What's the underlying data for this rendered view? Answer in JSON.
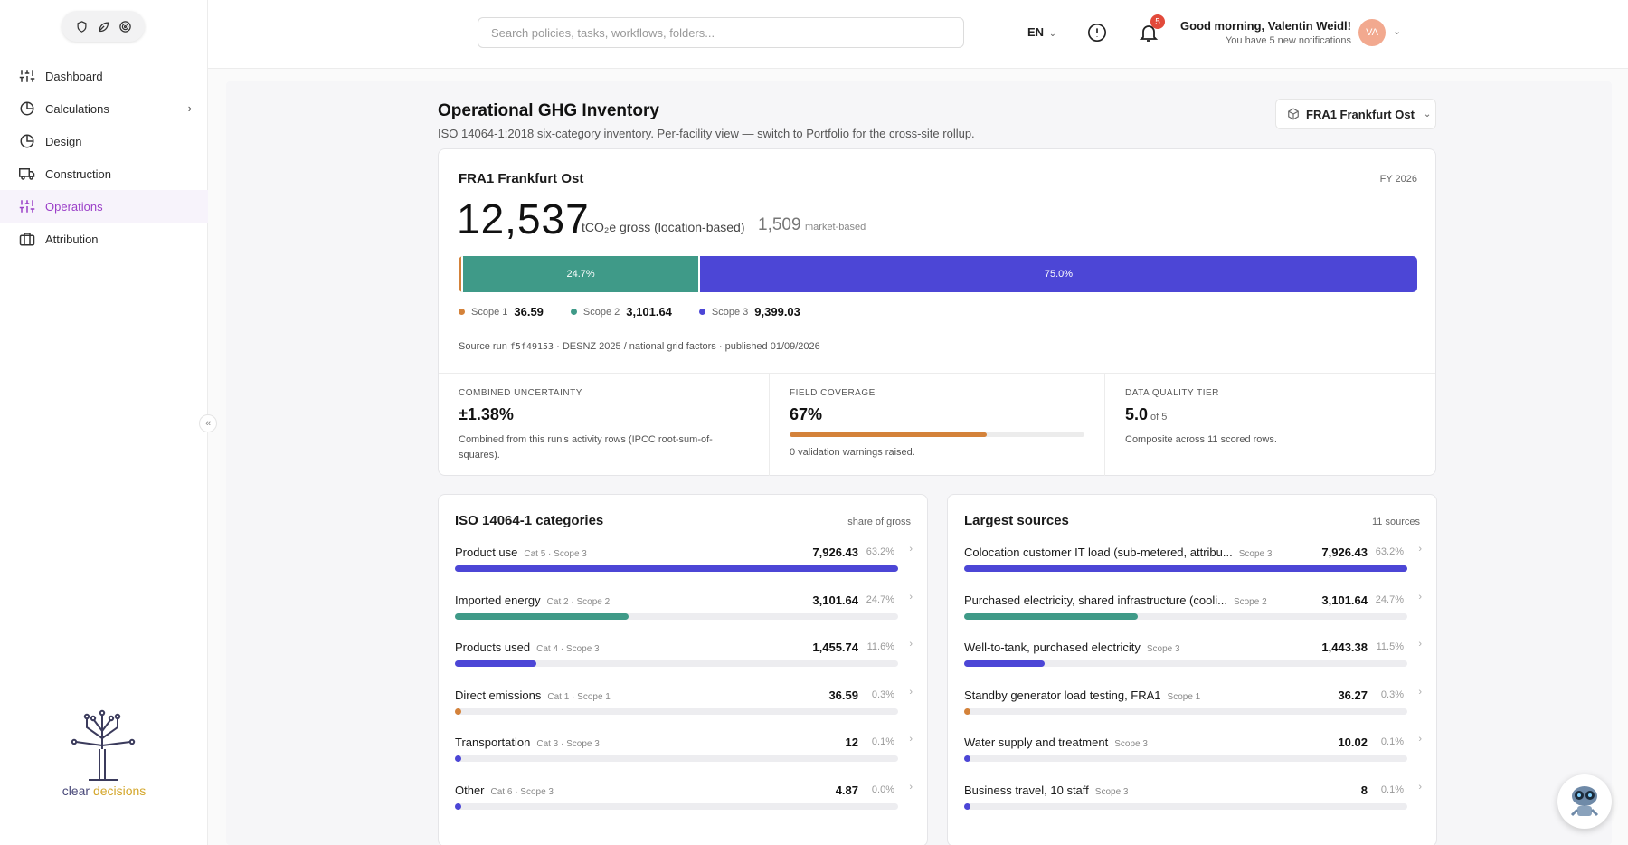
{
  "header": {
    "search_placeholder": "Search policies, tasks, workflows, folders...",
    "language": "EN",
    "notification_count": "5",
    "greeting": "Good morning, Valentin Weidl!",
    "greeting_sub": "You have 5 new notifications",
    "avatar_initials": "VA"
  },
  "sidebar": {
    "items": [
      {
        "label": "Dashboard",
        "icon": "sliders-icon"
      },
      {
        "label": "Calculations",
        "icon": "pie-chart-icon"
      },
      {
        "label": "Design",
        "icon": "pie-chart-icon"
      },
      {
        "label": "Construction",
        "icon": "truck-icon"
      },
      {
        "label": "Operations",
        "icon": "sliders-icon"
      },
      {
        "label": "Attribution",
        "icon": "briefcase-icon"
      }
    ],
    "brand_name_1": "clear",
    "brand_name_2": "decisions"
  },
  "page": {
    "title": "Operational GHG Inventory",
    "subtitle": "ISO 14064-1:2018 six-category inventory. Per-facility view — switch to Portfolio for the cross-site rollup.",
    "facility_select": "FRA1 Frankfurt Ost"
  },
  "summary": {
    "facility": "FRA1 Frankfurt Ost",
    "fiscal_year": "FY 2026",
    "gross": "12,537",
    "gross_unit": "tCO₂e gross (location-based)",
    "market": "1,509",
    "market_label": "market-based",
    "bar": [
      {
        "pct": 0.3,
        "label": "",
        "color": "#d4823a"
      },
      {
        "pct": 24.7,
        "label": "24.7%",
        "color": "#3f9a88"
      },
      {
        "pct": 75.0,
        "label": "75.0%",
        "color": "#4c46d6"
      }
    ],
    "legend": [
      {
        "name": "Scope 1",
        "value": "36.59",
        "color": "#d4823a"
      },
      {
        "name": "Scope 2",
        "value": "3,101.64",
        "color": "#3f9a88"
      },
      {
        "name": "Scope 3",
        "value": "9,399.03",
        "color": "#4c46d6"
      }
    ],
    "source_prefix": "Source run",
    "source_id": "f5f49153",
    "source_suffix": "· DESNZ 2025 / national grid factors · published 01/09/2026",
    "metrics": {
      "uncertainty_label": "COMBINED UNCERTAINTY",
      "uncertainty_value": "±1.38%",
      "uncertainty_desc": "Combined from this run's activity rows (IPCC root-sum-of-squares).",
      "coverage_label": "FIELD COVERAGE",
      "coverage_value": "67%",
      "coverage_pct": 67,
      "coverage_desc": "0 validation warnings raised.",
      "quality_label": "DATA QUALITY TIER",
      "quality_value": "5.0",
      "quality_of": "of 5",
      "quality_desc": "Composite across 11 scored rows."
    }
  },
  "categories": {
    "title": "ISO 14064-1 categories",
    "meta": "share of gross",
    "rows": [
      {
        "name": "Product use",
        "tag": "Cat 5 · Scope 3",
        "value": "7,926.43",
        "pct": "63.2%",
        "share": 63.2,
        "color": "#4c46d6"
      },
      {
        "name": "Imported energy",
        "tag": "Cat 2 · Scope 2",
        "value": "3,101.64",
        "pct": "24.7%",
        "share": 24.7,
        "color": "#3f9a88"
      },
      {
        "name": "Products used",
        "tag": "Cat 4 · Scope 3",
        "value": "1,455.74",
        "pct": "11.6%",
        "share": 11.6,
        "color": "#4c46d6"
      },
      {
        "name": "Direct emissions",
        "tag": "Cat 1 · Scope 1",
        "value": "36.59",
        "pct": "0.3%",
        "share": 0.3,
        "color": "#d4823a"
      },
      {
        "name": "Transportation",
        "tag": "Cat 3 · Scope 3",
        "value": "12",
        "pct": "0.1%",
        "share": 0.1,
        "color": "#4c46d6"
      },
      {
        "name": "Other",
        "tag": "Cat 6 · Scope 3",
        "value": "4.87",
        "pct": "0.0%",
        "share": 0.0,
        "color": "#4c46d6"
      }
    ]
  },
  "sources": {
    "title": "Largest sources",
    "meta": "11 sources",
    "rows": [
      {
        "name": "Colocation customer IT load (sub-metered, attribu...",
        "tag": "Scope 3",
        "value": "7,926.43",
        "pct": "63.2%",
        "share": 63.2,
        "color": "#4c46d6"
      },
      {
        "name": "Purchased electricity, shared infrastructure (cooli...",
        "tag": "Scope 2",
        "value": "3,101.64",
        "pct": "24.7%",
        "share": 24.7,
        "color": "#3f9a88"
      },
      {
        "name": "Well-to-tank, purchased electricity",
        "tag": "Scope 3",
        "value": "1,443.38",
        "pct": "11.5%",
        "share": 11.5,
        "color": "#4c46d6"
      },
      {
        "name": "Standby generator load testing, FRA1",
        "tag": "Scope 1",
        "value": "36.27",
        "pct": "0.3%",
        "share": 0.3,
        "color": "#d4823a"
      },
      {
        "name": "Water supply and treatment",
        "tag": "Scope 3",
        "value": "10.02",
        "pct": "0.1%",
        "share": 0.1,
        "color": "#4c46d6"
      },
      {
        "name": "Business travel, 10 staff",
        "tag": "Scope 3",
        "value": "8",
        "pct": "0.1%",
        "share": 0.1,
        "color": "#4c46d6"
      }
    ]
  }
}
